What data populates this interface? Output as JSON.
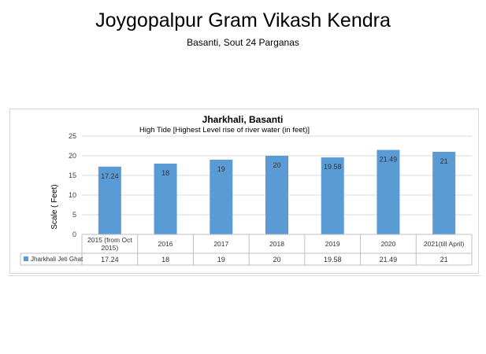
{
  "page": {
    "title": "Joygopalpur Gram Vikash Kendra",
    "subtitle": "Basanti, Sout 24 Parganas"
  },
  "chart_data": {
    "type": "bar",
    "title": "Jharkhali, Basanti",
    "subtitle": "High Tide [Highest Level rise of river water (in feet)]",
    "ylabel": "Scale ( Feet)",
    "xlabel": "",
    "ylim": [
      0,
      25
    ],
    "yticks": [
      0,
      5,
      10,
      15,
      20,
      25
    ],
    "grid": true,
    "legend": "data-table",
    "categories": [
      "2015 (from Oct 2015)",
      "2016",
      "2017",
      "2018",
      "2019",
      "2020",
      "2021(till  April)"
    ],
    "category_lines": [
      [
        "2015 (from Oct",
        "2015)"
      ],
      [
        "2016"
      ],
      [
        "2017"
      ],
      [
        "2018"
      ],
      [
        "2019"
      ],
      [
        "2020"
      ],
      [
        "2021(till  April)"
      ]
    ],
    "series": [
      {
        "name": "Jharkhali Jeti Ghat",
        "values": [
          17.24,
          18,
          19,
          20,
          19.58,
          21.49,
          21
        ],
        "labels": [
          "17.24",
          "18",
          "19",
          "20",
          "19.58",
          "21.49",
          "21"
        ],
        "color": "#5b9bd5"
      }
    ]
  }
}
